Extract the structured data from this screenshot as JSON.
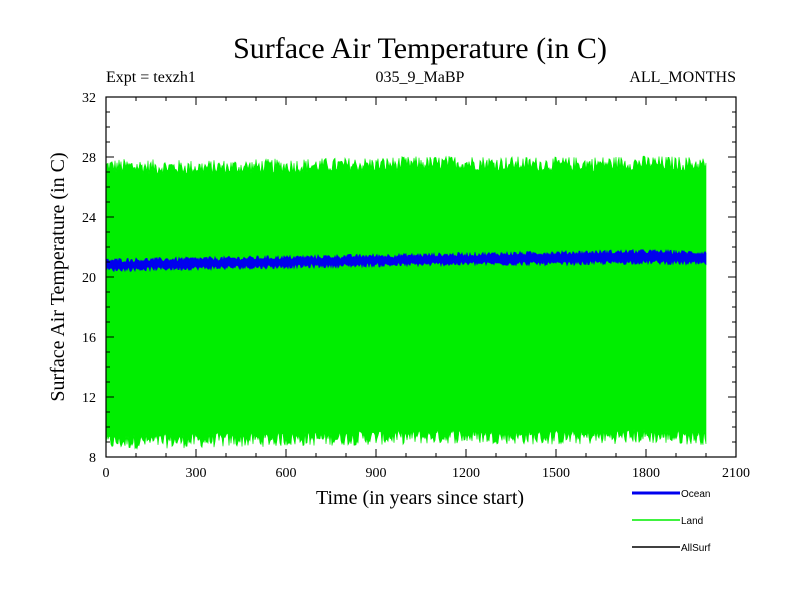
{
  "chart_data": {
    "type": "line",
    "title": "Surface Air Temperature (in C)",
    "subtitle_left": "Expt = texzh1",
    "subtitle_center": "035_9_MaBP",
    "subtitle_right": "ALL_MONTHS",
    "xlabel": "Time (in years since start)",
    "ylabel": "Surface Air Temperature (in C)",
    "xlim": [
      0,
      2100
    ],
    "ylim": [
      8,
      32
    ],
    "x_ticks": [
      0,
      300,
      600,
      900,
      1200,
      1500,
      1800,
      2100
    ],
    "y_ticks": [
      8,
      12,
      16,
      20,
      24,
      28,
      32
    ],
    "x_tick_labels": [
      "0",
      "300",
      "600",
      "900",
      "1200",
      "1500",
      "1800",
      "2100"
    ],
    "y_tick_labels": [
      "8",
      "12",
      "16",
      "20",
      "24",
      "28",
      "32"
    ],
    "legend_position": "bottom-right",
    "series": [
      {
        "name": "Land",
        "color": "#00ee00",
        "style": "seasonal band (monthly values)",
        "x": [
          0,
          300,
          600,
          900,
          1200,
          1500,
          1800,
          2000
        ],
        "upper": [
          27.4,
          27.3,
          27.4,
          27.5,
          27.6,
          27.5,
          27.6,
          27.5
        ],
        "lower": [
          9.0,
          9.1,
          9.2,
          9.3,
          9.4,
          9.3,
          9.4,
          9.3
        ]
      },
      {
        "name": "Ocean",
        "color": "#0000ee",
        "style": "seasonal band (monthly values)",
        "x": [
          0,
          300,
          600,
          900,
          1200,
          1500,
          1800,
          2000
        ],
        "upper": [
          21.1,
          21.2,
          21.3,
          21.4,
          21.5,
          21.6,
          21.7,
          21.6
        ],
        "lower": [
          20.5,
          20.6,
          20.7,
          20.8,
          20.9,
          20.9,
          21.0,
          20.9
        ]
      },
      {
        "name": "AllSurf",
        "color": "#000000",
        "style": "line",
        "x": [],
        "values": []
      }
    ],
    "legend": [
      {
        "label": "Ocean",
        "color": "#0000ee"
      },
      {
        "label": "Land",
        "color": "#00ee00"
      },
      {
        "label": "AllSurf",
        "color": "#000000"
      }
    ]
  }
}
